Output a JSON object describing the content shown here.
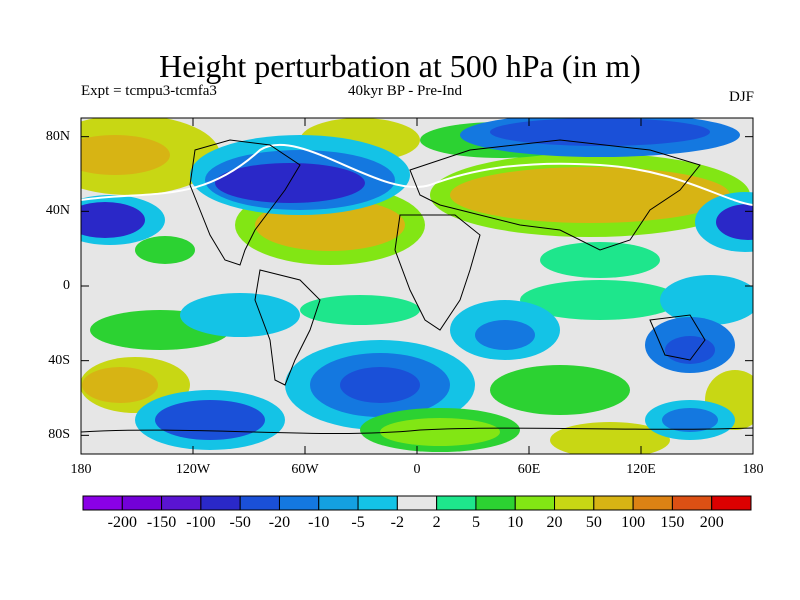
{
  "header": {
    "title": "Height perturbation at 500 hPa (in m)",
    "expt": "Expt = tcmpu3-tcmfa3",
    "period": "40kyr BP - Pre-Ind",
    "season": "DJF"
  },
  "map": {
    "lat_labels": [
      "80N",
      "40N",
      "0",
      "40S",
      "80S"
    ],
    "lat_values": [
      80,
      40,
      0,
      -40,
      -80
    ],
    "lon_labels": [
      "180",
      "120W",
      "60W",
      "0",
      "60E",
      "120E",
      "180"
    ],
    "lon_values": [
      -180,
      -120,
      -60,
      0,
      60,
      120,
      180
    ],
    "lat_range": [
      -90,
      90
    ],
    "lon_range": [
      -180,
      180
    ]
  },
  "colorbar": {
    "labels": [
      "-200",
      "-150",
      "-100",
      "-50",
      "-20",
      "-10",
      "-5",
      "-2",
      "2",
      "5",
      "10",
      "20",
      "50",
      "100",
      "150",
      "200"
    ],
    "colors": [
      "#8a00e6",
      "#7300d8",
      "#5a14d2",
      "#2a28c8",
      "#1a50d8",
      "#1478e0",
      "#14a0e0",
      "#14c3e6",
      "#e6e6e6",
      "#1ee68c",
      "#2cd232",
      "#82e614",
      "#c8d714",
      "#d7b414",
      "#dc8214",
      "#dc5014",
      "#dc0000"
    ]
  }
}
